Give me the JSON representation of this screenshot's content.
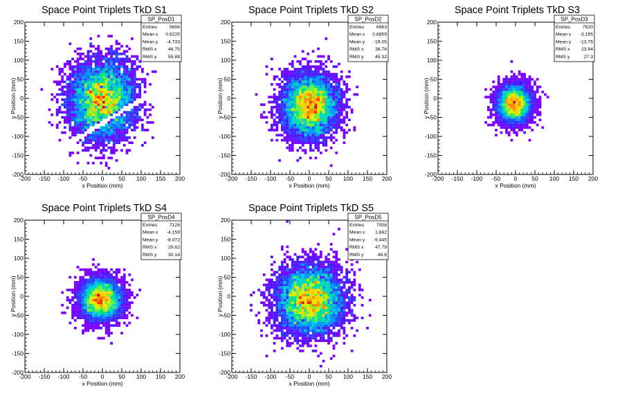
{
  "chart_data": [
    {
      "type": "heatmap",
      "title": "Space Point Triplets TkD S1",
      "xlabel": "x Position (mm)",
      "ylabel": "y Position (mm)",
      "xlim": [
        -200,
        200
      ],
      "ylim": [
        -200,
        200
      ],
      "xticks": [
        "-200",
        "-150",
        "-100",
        "-50",
        "0",
        "50",
        "100",
        "150",
        "200"
      ],
      "yticks": [
        "-200",
        "-150",
        "-100",
        "-50",
        "0",
        "50",
        "100",
        "150",
        "200"
      ],
      "stats": {
        "name": "SP_PosD1",
        "rows": [
          {
            "label": "Entries",
            "value": "5656"
          },
          {
            "label": "Mean x",
            "value": "0.6225"
          },
          {
            "label": "Mean y",
            "value": "-4.733"
          },
          {
            "label": "RMS x",
            "value": "46.75"
          },
          {
            "label": "RMS y",
            "value": "55.88"
          }
        ]
      },
      "distribution": {
        "entries": 5656,
        "mean_x": 0.6225,
        "mean_y": -4.733,
        "rms_x": 46.75,
        "rms_y": 55.88,
        "shape": "core with diagonal gap band"
      },
      "grid": false
    },
    {
      "type": "heatmap",
      "title": "Space Point Triplets TkD S2",
      "xlabel": "x Position (mm)",
      "ylabel": "y Position (mm)",
      "xlim": [
        -200,
        200
      ],
      "ylim": [
        -200,
        200
      ],
      "xticks": [
        "-200",
        "-150",
        "-100",
        "-50",
        "0",
        "50",
        "100",
        "150",
        "200"
      ],
      "yticks": [
        "-200",
        "-150",
        "-100",
        "-50",
        "0",
        "50",
        "100",
        "150",
        "200"
      ],
      "stats": {
        "name": "SP_PosD2",
        "rows": [
          {
            "label": "Entries",
            "value": "6983"
          },
          {
            "label": "Mean x",
            "value": "0.6859"
          },
          {
            "label": "Mean y",
            "value": "-19.05"
          },
          {
            "label": "RMS x",
            "value": "38.76"
          },
          {
            "label": "RMS y",
            "value": "45.32"
          }
        ]
      },
      "distribution": {
        "entries": 6983,
        "mean_x": 0.6859,
        "mean_y": -19.05,
        "rms_x": 38.76,
        "rms_y": 45.32,
        "shape": "gaussian"
      },
      "grid": false
    },
    {
      "type": "heatmap",
      "title": "Space Point Triplets TkD S3",
      "xlabel": "x Position (mm)",
      "ylabel": "y Position (mm)",
      "xlim": [
        -200,
        200
      ],
      "ylim": [
        -200,
        200
      ],
      "xticks": [
        "-200",
        "-150",
        "-100",
        "-50",
        "0",
        "50",
        "100",
        "150",
        "200"
      ],
      "yticks": [
        "-200",
        "-150",
        "-100",
        "-50",
        "0",
        "50",
        "100",
        "150",
        "200"
      ],
      "stats": {
        "name": "SP_PosD3",
        "rows": [
          {
            "label": "Entries",
            "value": "7520"
          },
          {
            "label": "Mean x",
            "value": "-3.165"
          },
          {
            "label": "Mean y",
            "value": "-13.75"
          },
          {
            "label": "RMS x",
            "value": "23.94"
          },
          {
            "label": "RMS y",
            "value": "27.3"
          }
        ]
      },
      "distribution": {
        "entries": 7520,
        "mean_x": -3.165,
        "mean_y": -13.75,
        "rms_x": 23.94,
        "rms_y": 27.3,
        "shape": "gaussian"
      },
      "grid": false
    },
    {
      "type": "heatmap",
      "title": "Space Point Triplets TkD S4",
      "xlabel": "x Position (mm)",
      "ylabel": "y Position (mm)",
      "xlim": [
        -200,
        200
      ],
      "ylim": [
        -200,
        200
      ],
      "xticks": [
        "-200",
        "-150",
        "-100",
        "-50",
        "0",
        "50",
        "100",
        "150",
        "200"
      ],
      "yticks": [
        "-200",
        "-150",
        "-100",
        "-50",
        "0",
        "50",
        "100",
        "150",
        "200"
      ],
      "stats": {
        "name": "SP_PosD4",
        "rows": [
          {
            "label": "Entries",
            "value": "7128"
          },
          {
            "label": "Mean x",
            "value": "-4.159"
          },
          {
            "label": "Mean y",
            "value": "-8.072"
          },
          {
            "label": "RMS x",
            "value": "29.62"
          },
          {
            "label": "RMS y",
            "value": "30.18"
          }
        ]
      },
      "distribution": {
        "entries": 7128,
        "mean_x": -4.159,
        "mean_y": -8.072,
        "rms_x": 29.62,
        "rms_y": 30.18,
        "shape": "gaussian"
      },
      "grid": false
    },
    {
      "type": "heatmap",
      "title": "Space Point Triplets TkD S5",
      "xlabel": "x Position (mm)",
      "ylabel": "y Position (mm)",
      "xlim": [
        -200,
        200
      ],
      "ylim": [
        -200,
        200
      ],
      "xticks": [
        "-200",
        "-150",
        "-100",
        "-50",
        "0",
        "50",
        "100",
        "150",
        "200"
      ],
      "yticks": [
        "-200",
        "-150",
        "-100",
        "-50",
        "0",
        "50",
        "100",
        "150",
        "200"
      ],
      "stats": {
        "name": "SP_PosD5",
        "rows": [
          {
            "label": "Entries",
            "value": "7008"
          },
          {
            "label": "Mean x",
            "value": "1.842"
          },
          {
            "label": "Mean y",
            "value": "-9.445"
          },
          {
            "label": "RMS x",
            "value": "47.79"
          },
          {
            "label": "RMS y",
            "value": "49.6"
          }
        ]
      },
      "distribution": {
        "entries": 7008,
        "mean_x": 1.842,
        "mean_y": -9.445,
        "rms_x": 47.79,
        "rms_y": 49.6,
        "shape": "gaussian"
      },
      "grid": false
    }
  ],
  "palette": [
    "#ffffff",
    "#7a00ff",
    "#4b1bff",
    "#1f4dff",
    "#0094ff",
    "#00cfd6",
    "#00e08a",
    "#6ef03c",
    "#d8f000",
    "#ffd000",
    "#ff8a00",
    "#ff2a00",
    "#d40000"
  ]
}
